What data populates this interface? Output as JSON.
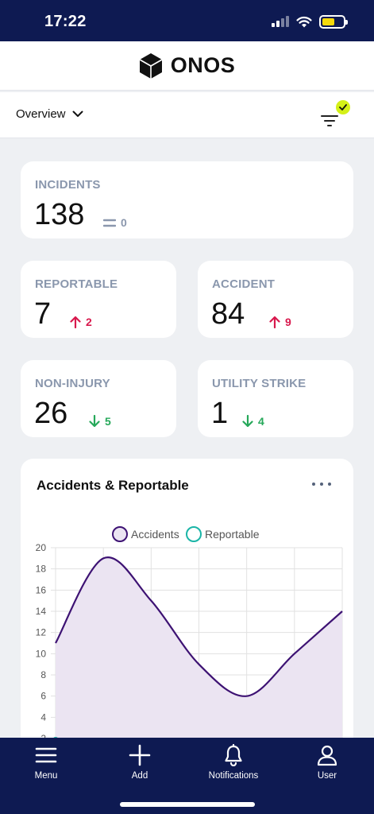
{
  "status_bar": {
    "time": "17:22"
  },
  "header": {
    "app_name": "ONOS"
  },
  "subheader": {
    "view_label": "Overview"
  },
  "stats": {
    "incidents": {
      "label": "INCIDENTS",
      "value": "138",
      "change": "0",
      "trend": "flat"
    },
    "reportable": {
      "label": "REPORTABLE",
      "value": "7",
      "change": "2",
      "trend": "up"
    },
    "accident": {
      "label": "ACCIDENT",
      "value": "84",
      "change": "9",
      "trend": "up"
    },
    "non_injury": {
      "label": "NON-INJURY",
      "value": "26",
      "change": "5",
      "trend": "down"
    },
    "utility_strike": {
      "label": "UTILITY STRIKE",
      "value": "1",
      "change": "4",
      "trend": "down"
    }
  },
  "chart_card": {
    "title": "Accidents & Reportable"
  },
  "chart_data": {
    "type": "area",
    "title": "Accidents & Reportable",
    "y_ticks": [
      2,
      4,
      6,
      8,
      10,
      12,
      14,
      16,
      18,
      20
    ],
    "ylim": [
      2,
      20
    ],
    "grid": true,
    "legend_placement": "top-center",
    "x_points": 7,
    "series": [
      {
        "name": "Accidents",
        "values": [
          11,
          19,
          15,
          9,
          6,
          10,
          14
        ],
        "color": "#3d1273",
        "fill": "#ebe4f2"
      },
      {
        "name": "Reportable",
        "values": [
          2
        ],
        "color": "#1ab5a7"
      }
    ]
  },
  "bottom_nav": {
    "items": [
      {
        "label": "Menu",
        "icon": "menu-icon"
      },
      {
        "label": "Add",
        "icon": "plus-icon"
      },
      {
        "label": "Notifications",
        "icon": "bell-icon"
      },
      {
        "label": "User",
        "icon": "user-icon"
      }
    ]
  },
  "colors": {
    "navy": "#0e1a52",
    "accent_lime": "#d4f018",
    "up_red": "#d8194d",
    "down_green": "#26a85a",
    "label_gray": "#8a97ad"
  }
}
